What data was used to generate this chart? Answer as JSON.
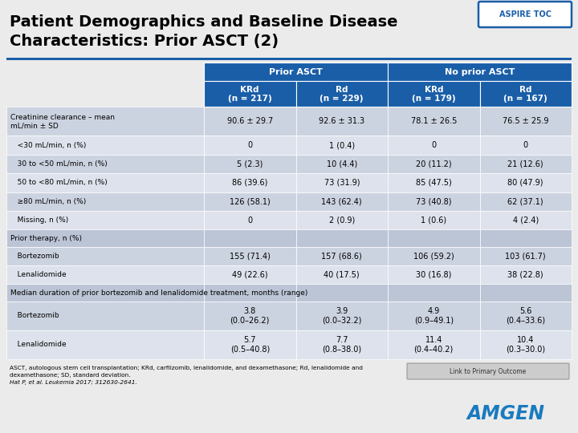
{
  "title_line1": "Patient Demographics and Baseline Disease",
  "title_line2": "Characteristics: Prior ASCT (2)",
  "aspire_toc_label": "ASPIRE TOC",
  "bg_color": "#ebebeb",
  "header_blue": "#1a5ea8",
  "header_text_color": "#ffffff",
  "row_colors": [
    "#ccd3e0",
    "#dde2ec"
  ],
  "row_section_color": "#bcc5d6",
  "col_headers_row1": [
    "Prior ASCT",
    "No prior ASCT"
  ],
  "col_headers_row2": [
    "KRd\n(n = 217)",
    "Rd\n(n = 229)",
    "KRd\n(n = 179)",
    "Rd\n(n = 167)"
  ],
  "rows": [
    {
      "label": "Creatinine clearance – mean\nmL/min ± SD",
      "values": [
        "90.6 ± 29.7",
        "92.6 ± 31.3",
        "78.1 ± 26.5",
        "76.5 ± 25.9"
      ],
      "section": false,
      "two_line": true
    },
    {
      "label": "   <30 mL/min, n (%)",
      "values": [
        "0",
        "1 (0.4)",
        "0",
        "0"
      ],
      "section": false,
      "two_line": false
    },
    {
      "label": "   30 to <50 mL/min, n (%)",
      "values": [
        "5 (2.3)",
        "10 (4.4)",
        "20 (11.2)",
        "21 (12.6)"
      ],
      "section": false,
      "two_line": false
    },
    {
      "label": "   50 to <80 mL/min, n (%)",
      "values": [
        "86 (39.6)",
        "73 (31.9)",
        "85 (47.5)",
        "80 (47.9)"
      ],
      "section": false,
      "two_line": false
    },
    {
      "label": "   ≥80 mL/min, n (%)",
      "values": [
        "126 (58.1)",
        "143 (62.4)",
        "73 (40.8)",
        "62 (37.1)"
      ],
      "section": false,
      "two_line": false
    },
    {
      "label": "   Missing, n (%)",
      "values": [
        "0",
        "2 (0.9)",
        "1 (0.6)",
        "4 (2.4)"
      ],
      "section": false,
      "two_line": false
    },
    {
      "label": "Prior therapy, n (%)",
      "values": [
        "",
        "",
        "",
        ""
      ],
      "section": true,
      "two_line": false
    },
    {
      "label": "   Bortezomib",
      "values": [
        "155 (71.4)",
        "157 (68.6)",
        "106 (59.2)",
        "103 (61.7)"
      ],
      "section": false,
      "two_line": false
    },
    {
      "label": "   Lenalidomide",
      "values": [
        "49 (22.6)",
        "40 (17.5)",
        "30 (16.8)",
        "38 (22.8)"
      ],
      "section": false,
      "two_line": false
    },
    {
      "label": "Median duration of prior bortezomib and lenalidomide treatment, months (range)",
      "values": [
        "",
        "",
        "",
        ""
      ],
      "section": true,
      "two_line": false
    },
    {
      "label": "   Bortezomib",
      "values": [
        "3.8\n(0.0–26.2)",
        "3.9\n(0.0–32.2)",
        "4.9\n(0.9–49.1)",
        "5.6\n(0.4–33.6)"
      ],
      "section": false,
      "two_line": true
    },
    {
      "label": "   Lenalidomide",
      "values": [
        "5.7\n(0.5–40.8)",
        "7.7\n(0.8–38.0)",
        "11.4\n(0.4–40.2)",
        "10.4\n(0.3–30.0)"
      ],
      "section": false,
      "two_line": true
    }
  ],
  "footnote_line1": "ASCT, autologous stem cell transplantation; KRd, carfilzomib, lenalidomide, and dexamethasone; Rd, lenalidomide and",
  "footnote_line2": "dexamethasone; SD, standard deviation.",
  "footnote_line3": "Hat P, et al. Leukemia 2017; 312630-2641.",
  "link_label": "Link to Primary Outcome",
  "amgen_color": "#1a7abf",
  "separator_color": "#1a5ea8"
}
